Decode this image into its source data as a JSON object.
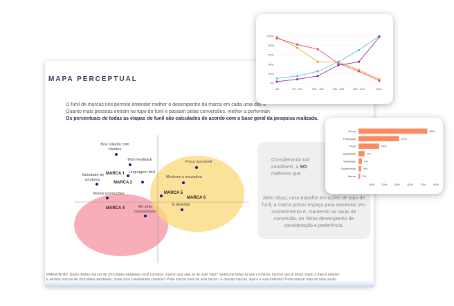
{
  "slide": {
    "title": "MAPA PERCEPTUAL",
    "intro": [
      "O funil de marcas nos permite entender melhor o desempenho da marca em cada uma das e",
      "Quanto mais pessoas entram no topo do funil e passam pelas conversões, melhor a performan",
      "Os percentuais de todas as etapas do funil são calculados de acordo com a base geral da pesquisa realizada."
    ],
    "map_labels": [
      "Boa relação com clientes",
      "Bom feedback",
      "Variedade de produtos",
      "Linguagem fácil",
      "Muitas promoções",
      "Me sinto representado",
      "Preço acessível",
      "Moderno e inovadora",
      "É divertido"
    ],
    "brands": [
      "MARCA 1",
      "MARCA 2",
      "MARCA 4",
      "MARCA 5",
      "MARCA 6"
    ],
    "box_text": [
      "Considerando tod",
      "saudáveis, a ",
      "SO",
      "melhores que",
      "Além disso, caso trabalhe em ações de topo de",
      "funil, a marca possui espaço para aumentar seu",
      "conhecimento e, mantendo as taxas de",
      "conversão, ter ótimo desempenho de",
      "consideração e preferência."
    ],
    "footer": [
      "PERGUNTAS: Quais destas marcas de chocolates saudáveis você conhece, mesmo que seja só de ouvir falar? Selecione todas as que conhecer, mesmo que já tenha citado a marca anterior",
      "E dessas marcas de chocolates saudáveis, quais você consideraria comprar? Pode marcar mais de uma opção / E dessas marcas, qual é a sua preferida? Pode marcar mais de uma opção"
    ]
  },
  "chart_data": [
    {
      "type": "line",
      "categories": [
        "-25",
        "25 - 100",
        "100 - 150",
        "150 - 200",
        "200 - 300",
        "300+"
      ],
      "ylim": [
        0,
        100
      ],
      "yticks": [
        {
          "value": 0,
          "label": "0%"
        },
        {
          "value": 20,
          "label": "20%"
        },
        {
          "value": 40,
          "label": "40%"
        },
        {
          "value": 60,
          "label": "60%"
        },
        {
          "value": 80,
          "label": "80%"
        },
        {
          "value": 100,
          "label": "100%"
        }
      ],
      "series": [
        {
          "color": "#f6a623",
          "values": [
            98,
            75,
            45,
            45,
            28,
            8
          ]
        },
        {
          "color": "#e0457b",
          "values": [
            95,
            82,
            72,
            42,
            25,
            5
          ]
        },
        {
          "color": "#5bc0de",
          "values": [
            10,
            15,
            25,
            45,
            70,
            100
          ]
        },
        {
          "color": "#8e2ca3",
          "values": [
            3,
            8,
            15,
            38,
            45,
            98
          ]
        }
      ]
    },
    {
      "type": "bar",
      "orientation": "horizontal",
      "color": "#f98b5e",
      "categories": [
        "Preço",
        "Promoção",
        "Preta",
        "Qualidade",
        "Variedade",
        "Experiência",
        "Marca"
      ],
      "values": [
        80,
        47,
        24,
        7,
        4,
        3,
        2
      ],
      "value_labels": [
        "80%",
        "47%",
        "24%",
        "7%",
        "4%",
        "3%",
        "2%"
      ],
      "xlim": [
        0,
        90
      ],
      "xticks": [
        {
          "value": 15,
          "label": "15%"
        },
        {
          "value": 30,
          "label": "30%"
        },
        {
          "value": 45,
          "label": "45%"
        },
        {
          "value": 60,
          "label": "60%"
        },
        {
          "value": 75,
          "label": "75%"
        },
        {
          "value": 90,
          "label": "90%"
        }
      ]
    }
  ]
}
